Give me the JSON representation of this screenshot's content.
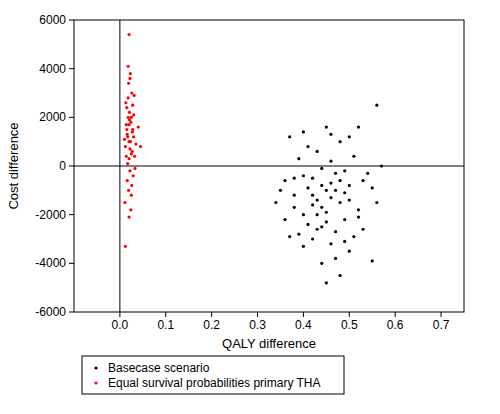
{
  "chart_data": {
    "type": "scatter",
    "x_label": "QALY difference",
    "y_label": "Cost difference",
    "xlim": [
      -0.1,
      0.75
    ],
    "xticks": [
      {
        "value": 0,
        "label": "0.0"
      },
      0.1,
      0.2,
      0.3,
      0.4,
      0.5,
      0.6,
      0.7
    ],
    "ylim": [
      -6000,
      6000
    ],
    "yticks": [
      -6000,
      -4000,
      -2000,
      0,
      2000,
      4000,
      6000
    ],
    "grid": false,
    "legend": "bottom",
    "marker": "circle",
    "series": [
      {
        "name": "Basecase scenario",
        "color": "#000000",
        "x": [
          0.45,
          0.42,
          0.48,
          0.4,
          0.46,
          0.5,
          0.38,
          0.44,
          0.47,
          0.52,
          0.36,
          0.41,
          0.49,
          0.43,
          0.55,
          0.39,
          0.46,
          0.51,
          0.37,
          0.53,
          0.44,
          0.48,
          0.42,
          0.5,
          0.45,
          0.4,
          0.47,
          0.43,
          0.38,
          0.54,
          0.49,
          0.41,
          0.46,
          0.35,
          0.52,
          0.44,
          0.48,
          0.39,
          0.56,
          0.57,
          0.45,
          0.47,
          0.42,
          0.5,
          0.36,
          0.53,
          0.4,
          0.46,
          0.43,
          0.49,
          0.41,
          0.51,
          0.38,
          0.44,
          0.47,
          0.45,
          0.48,
          0.42,
          0.55,
          0.37,
          0.56,
          0.46,
          0.5,
          0.34,
          0.52,
          0.43,
          0.45,
          0.4,
          0.49,
          0.44
        ],
        "values": [
          -1000,
          -500,
          -1500,
          -2000,
          200,
          -800,
          -1200,
          -2500,
          -300,
          -1800,
          -600,
          800,
          -2200,
          -1400,
          -900,
          -2800,
          -3200,
          400,
          1200,
          -2600,
          -100,
          1000,
          -3000,
          -3500,
          -1900,
          -400,
          -2700,
          600,
          -1700,
          -300,
          -1100,
          -2400,
          -700,
          -1000,
          -2100,
          -4000,
          -4500,
          300,
          -1500,
          0,
          1600,
          -3800,
          -1600,
          1200,
          -2200,
          -600,
          -3300,
          -1300,
          -2000,
          -200,
          -900,
          -2900,
          -500,
          -1700,
          -1000,
          -2300,
          -600,
          -1200,
          -3900,
          -2900,
          2500,
          1300,
          -1400,
          -1500,
          1600,
          -2600,
          -4800,
          1400,
          -3100,
          -800
        ]
      },
      {
        "name": "Equal survival probabilities primary THA",
        "color": "#ff0000",
        "x": [
          0.02,
          0.015,
          0.025,
          0.018,
          0.022,
          0.03,
          0.012,
          0.028,
          0.02,
          0.016,
          0.024,
          0.035,
          0.01,
          0.026,
          0.019,
          0.021,
          0.032,
          0.014,
          0.023,
          0.017,
          0.027,
          0.04,
          0.013,
          0.022,
          0.029,
          0.018,
          0.025,
          0.011,
          0.02,
          0.031,
          0.016,
          0.024,
          0.019,
          0.027,
          0.015,
          0.033,
          0.021,
          0.012,
          0.023,
          0.026,
          0.018,
          0.028,
          0.02,
          0.022,
          0.014,
          0.03,
          0.017,
          0.025,
          0.02,
          0.045
        ],
        "values": [
          1000,
          1500,
          500,
          2000,
          -200,
          1200,
          800,
          2500,
          300,
          -600,
          1800,
          900,
          1100,
          3000,
          -1000,
          2200,
          400,
          1700,
          3800,
          100,
          1400,
          1600,
          2600,
          700,
          -400,
          4100,
          2000,
          -1500,
          5400,
          2900,
          1300,
          -1800,
          3400,
          600,
          2400,
          -100,
          1900,
          -3300,
          1000,
          -800,
          2800,
          1500,
          -2100,
          3600,
          400,
          2100,
          1200,
          -1200,
          1700,
          800
        ]
      }
    ]
  }
}
